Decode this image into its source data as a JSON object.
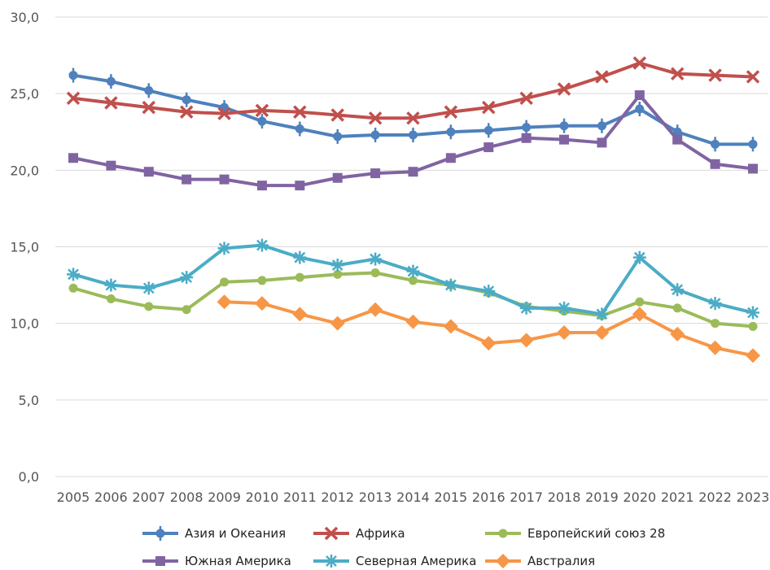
{
  "chart_data": {
    "type": "line",
    "title": "",
    "xlabel": "",
    "ylabel": "",
    "ylim": [
      0,
      30
    ],
    "yticks": [
      "0,0",
      "5,0",
      "10,0",
      "15,0",
      "20,0",
      "25,0",
      "30,0"
    ],
    "x": [
      "2005",
      "2006",
      "2007",
      "2008",
      "2009",
      "2010",
      "2011",
      "2012",
      "2013",
      "2014",
      "2015",
      "2016",
      "2017",
      "2018",
      "2019",
      "2020",
      "2021",
      "2022",
      "2023"
    ],
    "grid": "horizontal",
    "legend_position": "bottom",
    "series": [
      {
        "name": "Азия и Океания",
        "color": "#4e81bd",
        "marker": "dash",
        "values": [
          26.2,
          25.8,
          25.2,
          24.6,
          24.1,
          23.2,
          22.7,
          22.2,
          22.3,
          22.3,
          22.5,
          22.6,
          22.8,
          22.9,
          22.9,
          24.0,
          22.5,
          21.7,
          21.7
        ]
      },
      {
        "name": "Африка",
        "color": "#c0504d",
        "marker": "x",
        "values": [
          24.7,
          24.4,
          24.1,
          23.8,
          23.7,
          23.9,
          23.8,
          23.6,
          23.4,
          23.4,
          23.8,
          24.1,
          24.7,
          25.3,
          26.1,
          27.0,
          26.3,
          26.2,
          26.1
        ]
      },
      {
        "name": "Европейский союз 28",
        "color": "#9bbb59",
        "marker": "circle",
        "values": [
          12.3,
          11.6,
          11.1,
          10.9,
          12.7,
          12.8,
          13.0,
          13.2,
          13.3,
          12.8,
          12.5,
          12.0,
          11.1,
          10.8,
          10.5,
          11.4,
          11.0,
          10.0,
          9.8
        ]
      },
      {
        "name": "Южная Америка",
        "color": "#8064a2",
        "marker": "square",
        "values": [
          20.8,
          20.3,
          19.9,
          19.4,
          19.4,
          19.0,
          19.0,
          19.5,
          19.8,
          19.9,
          20.8,
          21.5,
          22.1,
          22.0,
          21.8,
          24.9,
          22.0,
          20.4,
          20.1
        ]
      },
      {
        "name": "Северная Америка",
        "color": "#4bacc6",
        "marker": "star",
        "values": [
          13.2,
          12.5,
          12.3,
          13.0,
          14.9,
          15.1,
          14.3,
          13.8,
          14.2,
          13.4,
          12.5,
          12.1,
          11.0,
          11.0,
          10.6,
          14.3,
          12.2,
          11.3,
          10.7
        ]
      },
      {
        "name": "Австралия",
        "color": "#f79646",
        "marker": "diamond",
        "values": [
          null,
          null,
          null,
          null,
          11.4,
          11.3,
          10.6,
          10.0,
          10.9,
          10.1,
          9.8,
          8.7,
          8.9,
          9.4,
          9.4,
          10.6,
          9.3,
          8.4,
          7.9
        ]
      }
    ]
  }
}
